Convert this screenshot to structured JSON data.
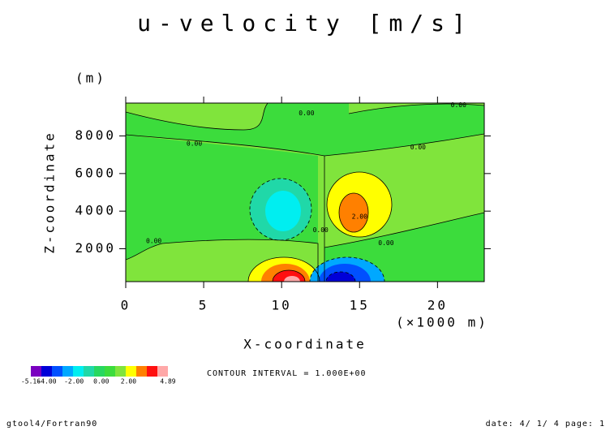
{
  "chart_data": {
    "type": "contour",
    "title": "u-velocity [m/s]",
    "y_unit": "(m)",
    "y_label": "Z-coordinate",
    "x_label": "X-coordinate",
    "x_unit": "(×1000 m)",
    "xlim": [
      0,
      23
    ],
    "ylim": [
      250,
      9750
    ],
    "xticks": [
      0,
      5,
      10,
      15,
      20
    ],
    "yticks": [
      2000,
      4000,
      6000,
      8000
    ],
    "contour_labels": [
      {
        "text": "0.00",
        "x": 11.6,
        "y": 9200
      },
      {
        "text": "0.00",
        "x": 4.4,
        "y": 7600
      },
      {
        "text": "0.00",
        "x": 18.75,
        "y": 7400
      },
      {
        "text": "0.00",
        "x": 21.35,
        "y": 9650
      },
      {
        "text": "0.00",
        "x": 1.8,
        "y": 2400
      },
      {
        "text": "0.00",
        "x": 16.7,
        "y": 2300
      },
      {
        "text": "0.00",
        "x": 12.5,
        "y": 3000
      },
      {
        "text": "2.00",
        "x": 15.0,
        "y": 3700
      }
    ],
    "colorbar": {
      "colors": [
        "#7a00c0",
        "#0000d8",
        "#0050ff",
        "#00a8ff",
        "#00eef0",
        "#20d8a8",
        "#28d860",
        "#3cdc3c",
        "#80e43c",
        "#ffff00",
        "#ff8000",
        "#ff1010",
        "#ffa8a8"
      ],
      "lim": [
        -5.16,
        4.89
      ],
      "ticks": [
        -5.16,
        {
          "value": -4,
          "label": "-4.00"
        },
        {
          "value": -2,
          "label": "-2.00"
        },
        {
          "value": 0,
          "label": "0.00"
        },
        {
          "value": 2,
          "label": "2.00"
        },
        4.89
      ]
    },
    "contour_interval": "CONTOUR INTERVAL = 1.000E+00",
    "footer_left": "gtool4/Fortran90",
    "footer_right": "date: 4/ 1/ 4 page: 1"
  }
}
